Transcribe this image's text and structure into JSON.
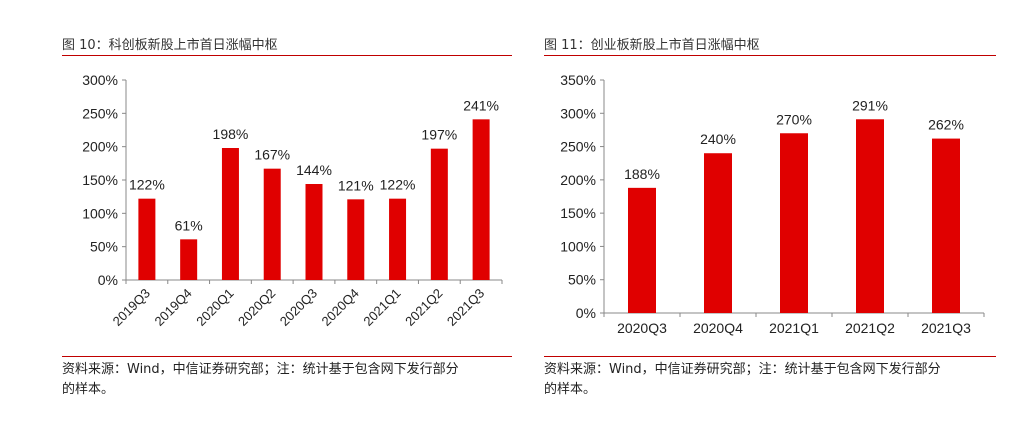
{
  "panels": [
    {
      "figure_title": "图 10：科创板新股上市首日涨幅中枢",
      "source_line1": "资料来源：Wind，中信证券研究部；注：统计基于包含网下发行部分",
      "source_line2": "的样本。"
    },
    {
      "figure_title": "图 11：创业板新股上市首日涨幅中枢",
      "source_line1": "资料来源：Wind，中信证券研究部；注：统计基于包含网下发行部分",
      "source_line2": "的样本。"
    }
  ],
  "chart_data": [
    {
      "type": "bar",
      "categories": [
        "2019Q3",
        "2019Q4",
        "2020Q1",
        "2020Q2",
        "2020Q3",
        "2020Q4",
        "2021Q1",
        "2021Q2",
        "2021Q3"
      ],
      "values": [
        122,
        61,
        198,
        167,
        144,
        121,
        122,
        197,
        241
      ],
      "data_labels": [
        "122%",
        "61%",
        "198%",
        "167%",
        "144%",
        "121%",
        "122%",
        "197%",
        "241%"
      ],
      "yticks": [
        "0%",
        "50%",
        "100%",
        "150%",
        "200%",
        "250%",
        "300%"
      ],
      "ylim": [
        0,
        300
      ],
      "grid": false,
      "bar_color": "#e00000",
      "xtick_rotation": "rotated"
    },
    {
      "type": "bar",
      "categories": [
        "2020Q3",
        "2020Q4",
        "2021Q1",
        "2021Q2",
        "2021Q3"
      ],
      "values": [
        188,
        240,
        270,
        291,
        262
      ],
      "data_labels": [
        "188%",
        "240%",
        "270%",
        "291%",
        "262%"
      ],
      "yticks": [
        "0%",
        "50%",
        "100%",
        "150%",
        "200%",
        "250%",
        "300%",
        "350%"
      ],
      "ylim": [
        0,
        350
      ],
      "grid": false,
      "bar_color": "#e00000",
      "xtick_rotation": "horizontal"
    }
  ]
}
